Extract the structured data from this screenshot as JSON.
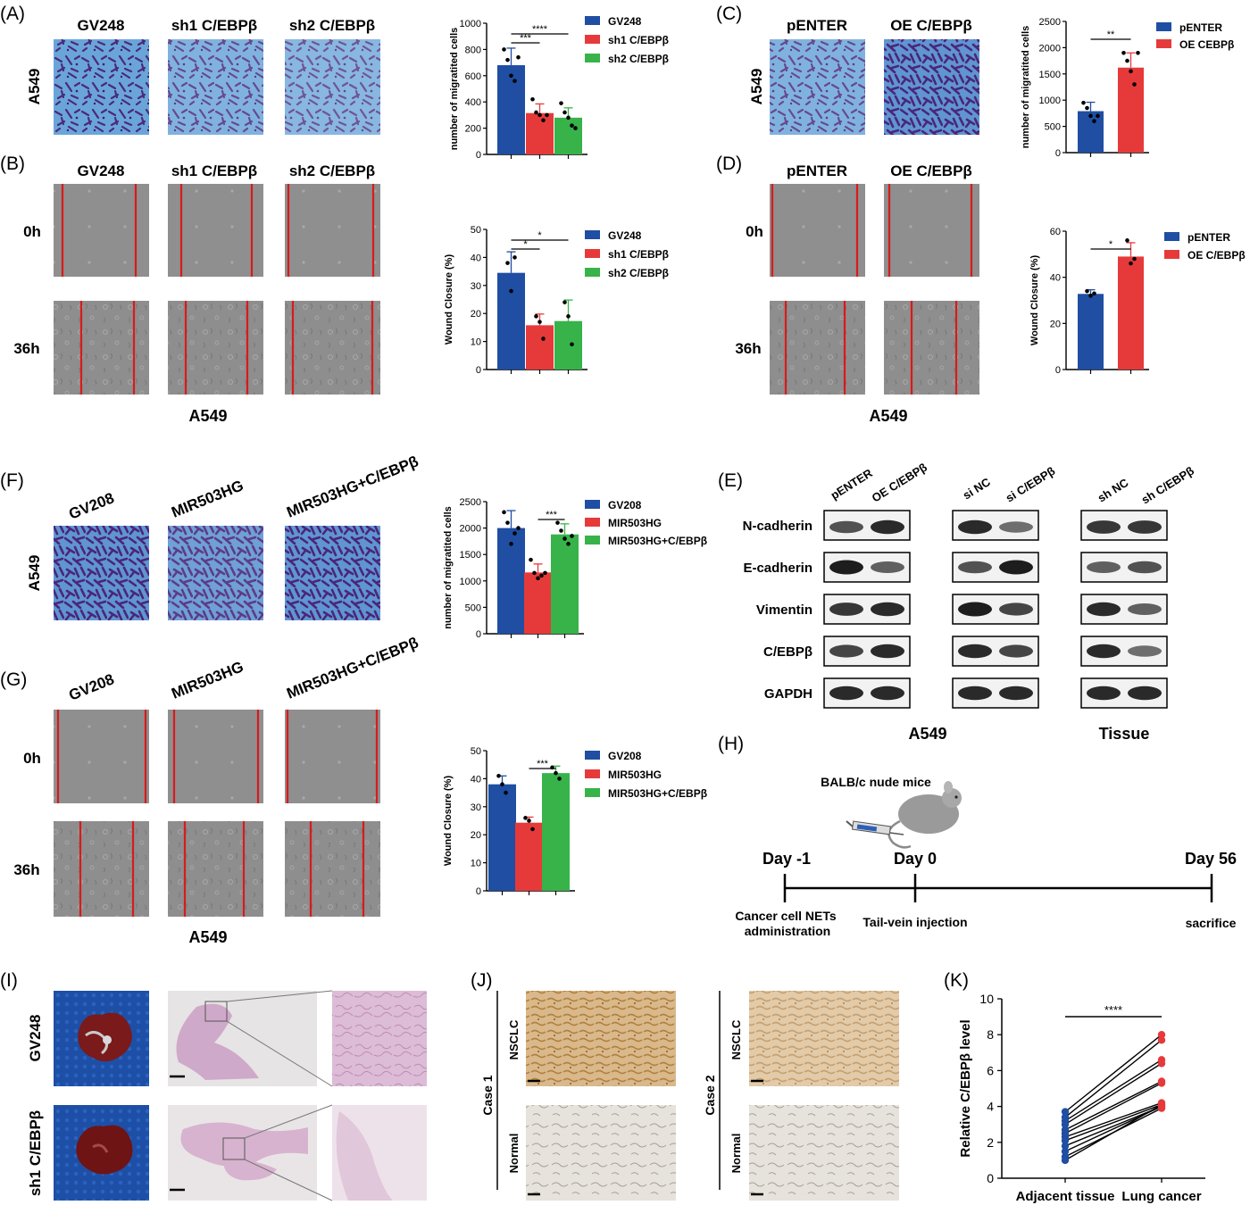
{
  "colors": {
    "blue": "#1f4ea3",
    "red": "#e63a3a",
    "green": "#37b34a",
    "scratch_line": "#d81b1b",
    "crystal_bg": "#5f9fd6",
    "crystal_cell": "#4a2a78",
    "micro_gray": "#8c8c8c",
    "he_pink": "#d9b3cf",
    "ihc_tan": "#c89a5c",
    "lung": "#7a1a1a",
    "dish": "#1b4fa8"
  },
  "panel_letters": {
    "A": "(A)",
    "B": "(B)",
    "C": "(C)",
    "D": "(D)",
    "E": "(E)",
    "F": "(F)",
    "G": "(G)",
    "H": "(H)",
    "I": "(I)",
    "J": "(J)",
    "K": "(K)"
  },
  "panelA": {
    "headers": [
      "GV248",
      "sh1 C/EBPβ",
      "sh2 C/EBPβ"
    ],
    "row_label": "A549"
  },
  "panelB": {
    "headers": [
      "GV248",
      "sh1 C/EBPβ",
      "sh2 C/EBPβ"
    ],
    "rows": [
      "0h",
      "36h"
    ],
    "footer": "A549"
  },
  "panelC": {
    "headers": [
      "pENTER",
      "OE C/EBPβ"
    ],
    "row_label": "A549"
  },
  "panelD": {
    "headers": [
      "pENTER",
      "OE C/EBPβ"
    ],
    "rows": [
      "0h",
      "36h"
    ],
    "footer": "A549"
  },
  "panelF": {
    "headers": [
      "GV208",
      "MIR503HG",
      "MIR503HG+C/EBPβ"
    ],
    "row_label": "A549"
  },
  "panelG": {
    "headers": [
      "GV208",
      "MIR503HG",
      "MIR503HG+C/EBPβ"
    ],
    "rows": [
      "0h",
      "36h"
    ],
    "footer": "A549"
  },
  "panelE": {
    "group1_lanes": [
      "pENTER",
      "OE C/EBPβ"
    ],
    "group2_lanes": [
      "si NC",
      "si C/EBPβ"
    ],
    "group3_lanes": [
      "sh NC",
      "sh C/EBPβ"
    ],
    "proteins": [
      "N-cadherin",
      "E-cadherin",
      "Vimentin",
      "C/EBPβ",
      "GAPDH"
    ],
    "footer_left": "A549",
    "footer_right": "Tissue"
  },
  "panelH": {
    "mouse_label": "BALB/c nude mice",
    "days": [
      "Day -1",
      "Day 0",
      "Day 56"
    ],
    "events": [
      "Cancer cell NETs",
      "administration",
      "Tail-vein injection",
      "sacrifice"
    ]
  },
  "panelI": {
    "rows": [
      "GV248",
      "sh1 C/EBPβ"
    ]
  },
  "panelJ": {
    "case1": "Case 1",
    "case2": "Case 2",
    "rows": [
      "NSCLC",
      "Normal"
    ]
  },
  "chart_data": [
    {
      "id": "A",
      "type": "bar",
      "categories": [
        "GV248",
        "sh1 C/EBPβ",
        "sh2 C/EBPβ"
      ],
      "values": [
        680,
        315,
        280
      ],
      "errors": [
        130,
        70,
        75
      ],
      "points": [
        [
          800,
          720,
          600,
          560,
          740
        ],
        [
          420,
          320,
          300,
          260,
          300
        ],
        [
          390,
          320,
          280,
          220,
          200
        ]
      ],
      "ylabel": "number of migratited cells",
      "ylim": [
        0,
        1000
      ],
      "yticks": [
        0,
        200,
        400,
        600,
        800,
        1000
      ],
      "legend": [
        "GV248",
        "sh1 C/EBPβ",
        "sh2 C/EBPβ"
      ],
      "significance": [
        {
          "from": 0,
          "to": 1,
          "label": "***"
        },
        {
          "from": 0,
          "to": 2,
          "label": "****"
        }
      ]
    },
    {
      "id": "B",
      "type": "bar",
      "categories": [
        "GV248",
        "sh1 C/EBPβ",
        "sh2 C/EBPβ"
      ],
      "values": [
        34.5,
        15.8,
        17.3
      ],
      "errors": [
        7.5,
        4,
        7.5
      ],
      "points": [
        [
          38,
          28,
          40
        ],
        [
          19,
          17,
          11
        ],
        [
          24,
          19,
          9
        ]
      ],
      "ylabel": "Wound Closure (%)",
      "ylim": [
        0,
        50
      ],
      "yticks": [
        0,
        10,
        20,
        30,
        40,
        50
      ],
      "legend": [
        "GV248",
        "sh1 C/EBPβ",
        "sh2 C/EBPβ"
      ],
      "significance": [
        {
          "from": 0,
          "to": 1,
          "label": "*"
        },
        {
          "from": 0,
          "to": 2,
          "label": "*"
        }
      ]
    },
    {
      "id": "C",
      "type": "bar",
      "categories": [
        "pENTER",
        "OE CEBPβ"
      ],
      "values": [
        790,
        1620
      ],
      "errors": [
        170,
        280
      ],
      "points": [
        [
          950,
          850,
          700,
          600,
          700
        ],
        [
          1900,
          1750,
          1550,
          1300,
          1900
        ]
      ],
      "ylabel": "number of migratited cells",
      "ylim": [
        0,
        2500
      ],
      "yticks": [
        0,
        500,
        1000,
        1500,
        2000,
        2500
      ],
      "legend": [
        "pENTER",
        "OE CEBPβ"
      ],
      "significance": [
        {
          "from": 0,
          "to": 1,
          "label": "**"
        }
      ]
    },
    {
      "id": "D",
      "type": "bar",
      "categories": [
        "pENTER",
        "OE C/EBPβ"
      ],
      "values": [
        32.8,
        49
      ],
      "errors": [
        1.8,
        6
      ],
      "points": [
        [
          34,
          32,
          33
        ],
        [
          56,
          46,
          48
        ]
      ],
      "ylabel": "Wound Closure (%)",
      "ylim": [
        0,
        60
      ],
      "yticks": [
        0,
        20,
        40,
        60
      ],
      "legend": [
        "pENTER",
        "OE C/EBPβ"
      ],
      "significance": [
        {
          "from": 0,
          "to": 1,
          "label": "*"
        }
      ]
    },
    {
      "id": "F",
      "type": "bar",
      "categories": [
        "GV208",
        "MIR503HG",
        "MIR503HG+C/EBPβ"
      ],
      "values": [
        2000,
        1160,
        1880
      ],
      "errors": [
        330,
        160,
        200
      ],
      "points": [
        [
          2300,
          2100,
          1700,
          1900,
          2000
        ],
        [
          1400,
          1150,
          1050,
          1100,
          1150
        ],
        [
          2100,
          1950,
          1800,
          1700,
          1850
        ]
      ],
      "ylabel": "number of migratited cells",
      "ylim": [
        0,
        2500
      ],
      "yticks": [
        0,
        500,
        1000,
        1500,
        2000,
        2500
      ],
      "legend": [
        "GV208",
        "MIR503HG",
        "MIR503HG+C/EBPβ"
      ],
      "significance": [
        {
          "from": 1,
          "to": 2,
          "label": "***"
        }
      ]
    },
    {
      "id": "G",
      "type": "bar",
      "categories": [
        "GV208",
        "MIR503HG",
        "MIR503HG+C/EBPβ"
      ],
      "values": [
        38,
        24.3,
        42
      ],
      "errors": [
        3,
        2,
        2.5
      ],
      "points": [
        [
          41,
          38,
          35
        ],
        [
          26,
          25,
          22
        ],
        [
          44,
          42,
          40
        ]
      ],
      "ylabel": "Wound Closure (%)",
      "ylim": [
        0,
        50
      ],
      "yticks": [
        0,
        10,
        20,
        30,
        40,
        50
      ],
      "legend": [
        "GV208",
        "MIR503HG",
        "MIR503HG+C/EBPβ"
      ],
      "significance": [
        {
          "from": 1,
          "to": 2,
          "label": "***"
        }
      ]
    },
    {
      "id": "K",
      "type": "line",
      "categories": [
        "Adjacent tissue",
        "Lung cancer"
      ],
      "pairs": [
        [
          3.7,
          8.0
        ],
        [
          3.4,
          7.7
        ],
        [
          3.2,
          6.6
        ],
        [
          3.0,
          6.4
        ],
        [
          2.7,
          5.4
        ],
        [
          2.5,
          5.3
        ],
        [
          2.3,
          4.2
        ],
        [
          2.1,
          4.1
        ],
        [
          1.8,
          4.0
        ],
        [
          1.5,
          4.0
        ],
        [
          1.2,
          3.9
        ],
        [
          1.0,
          4.1
        ]
      ],
      "ylabel": "Relative C/EBPβ level",
      "ylim": [
        0,
        10
      ],
      "yticks": [
        0,
        2,
        4,
        6,
        8,
        10
      ],
      "significance": [
        {
          "from": 0,
          "to": 1,
          "label": "****"
        }
      ]
    }
  ]
}
